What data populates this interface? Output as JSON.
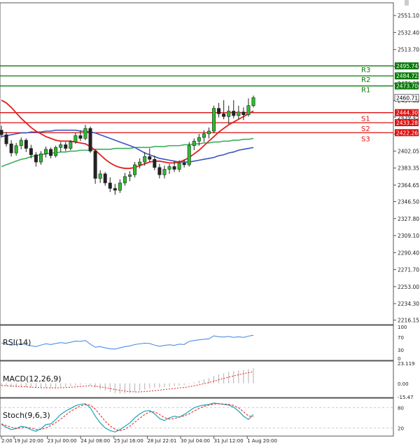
{
  "chart_data": {
    "type": "candlestick",
    "main": {
      "price_scale": [
        "2551.10",
        "2532.40",
        "2513.70",
        "2495.00",
        "2476.30",
        "2457.60",
        "2439.45",
        "2420.75",
        "2402.05",
        "2383.35",
        "2364.65",
        "2346.50",
        "2327.80",
        "2309.10",
        "2290.40",
        "2271.70",
        "2253.00",
        "2234.30",
        "2216.15"
      ],
      "ylim": [
        2212,
        2562
      ],
      "levels": [
        {
          "label": "R3",
          "value": 2495.74,
          "tag": "2495.74",
          "color": "#0a7a0a"
        },
        {
          "label": "R2",
          "value": 2484.72,
          "tag": "2484.72",
          "color": "#0a7a0a"
        },
        {
          "label": "R1",
          "value": 2473.7,
          "tag": "2473.70",
          "color": "#0a7a0a"
        },
        {
          "label": "S1",
          "value": 2444.3,
          "tag": "2444.30",
          "color": "#dd1111"
        },
        {
          "label": "S2",
          "value": 2433.28,
          "tag": "2433.28",
          "color": "#dd1111"
        },
        {
          "label": "S3",
          "value": 2422.26,
          "tag": "2422.26",
          "color": "#dd1111"
        }
      ],
      "current_price": {
        "value": 2460.71,
        "tag": "2460.71"
      },
      "candles": [
        {
          "o": 2425,
          "h": 2430,
          "l": 2417,
          "c": 2420
        },
        {
          "o": 2420,
          "h": 2423,
          "l": 2407,
          "c": 2410
        },
        {
          "o": 2410,
          "h": 2414,
          "l": 2396,
          "c": 2400
        },
        {
          "o": 2400,
          "h": 2411,
          "l": 2397,
          "c": 2408
        },
        {
          "o": 2408,
          "h": 2417,
          "l": 2404,
          "c": 2414
        },
        {
          "o": 2414,
          "h": 2416,
          "l": 2401,
          "c": 2405
        },
        {
          "o": 2405,
          "h": 2409,
          "l": 2394,
          "c": 2398
        },
        {
          "o": 2398,
          "h": 2401,
          "l": 2385,
          "c": 2390
        },
        {
          "o": 2390,
          "h": 2402,
          "l": 2387,
          "c": 2399
        },
        {
          "o": 2399,
          "h": 2407,
          "l": 2395,
          "c": 2404
        },
        {
          "o": 2404,
          "h": 2406,
          "l": 2394,
          "c": 2397
        },
        {
          "o": 2397,
          "h": 2408,
          "l": 2395,
          "c": 2406
        },
        {
          "o": 2406,
          "h": 2412,
          "l": 2401,
          "c": 2409
        },
        {
          "o": 2409,
          "h": 2412,
          "l": 2402,
          "c": 2405
        },
        {
          "o": 2405,
          "h": 2414,
          "l": 2403,
          "c": 2412
        },
        {
          "o": 2412,
          "h": 2422,
          "l": 2410,
          "c": 2419
        },
        {
          "o": 2419,
          "h": 2425,
          "l": 2413,
          "c": 2416
        },
        {
          "o": 2416,
          "h": 2431,
          "l": 2414,
          "c": 2427
        },
        {
          "o": 2427,
          "h": 2429,
          "l": 2400,
          "c": 2402
        },
        {
          "o": 2402,
          "h": 2404,
          "l": 2366,
          "c": 2372
        },
        {
          "o": 2372,
          "h": 2381,
          "l": 2367,
          "c": 2377
        },
        {
          "o": 2377,
          "h": 2379,
          "l": 2364,
          "c": 2367
        },
        {
          "o": 2367,
          "h": 2373,
          "l": 2357,
          "c": 2361
        },
        {
          "o": 2361,
          "h": 2366,
          "l": 2354,
          "c": 2359
        },
        {
          "o": 2359,
          "h": 2371,
          "l": 2356,
          "c": 2367
        },
        {
          "o": 2367,
          "h": 2378,
          "l": 2364,
          "c": 2374
        },
        {
          "o": 2374,
          "h": 2380,
          "l": 2369,
          "c": 2376
        },
        {
          "o": 2376,
          "h": 2390,
          "l": 2373,
          "c": 2387
        },
        {
          "o": 2387,
          "h": 2394,
          "l": 2383,
          "c": 2390
        },
        {
          "o": 2390,
          "h": 2401,
          "l": 2386,
          "c": 2396
        },
        {
          "o": 2396,
          "h": 2405,
          "l": 2390,
          "c": 2393
        },
        {
          "o": 2393,
          "h": 2397,
          "l": 2381,
          "c": 2384
        },
        {
          "o": 2384,
          "h": 2388,
          "l": 2372,
          "c": 2376
        },
        {
          "o": 2376,
          "h": 2386,
          "l": 2372,
          "c": 2382
        },
        {
          "o": 2382,
          "h": 2388,
          "l": 2377,
          "c": 2385
        },
        {
          "o": 2385,
          "h": 2391,
          "l": 2379,
          "c": 2382
        },
        {
          "o": 2382,
          "h": 2392,
          "l": 2379,
          "c": 2389
        },
        {
          "o": 2389,
          "h": 2393,
          "l": 2384,
          "c": 2387
        },
        {
          "o": 2387,
          "h": 2412,
          "l": 2385,
          "c": 2408
        },
        {
          "o": 2408,
          "h": 2416,
          "l": 2403,
          "c": 2413
        },
        {
          "o": 2413,
          "h": 2421,
          "l": 2408,
          "c": 2417
        },
        {
          "o": 2417,
          "h": 2425,
          "l": 2412,
          "c": 2421
        },
        {
          "o": 2421,
          "h": 2428,
          "l": 2416,
          "c": 2424
        },
        {
          "o": 2424,
          "h": 2452,
          "l": 2422,
          "c": 2449
        },
        {
          "o": 2449,
          "h": 2455,
          "l": 2439,
          "c": 2443
        },
        {
          "o": 2443,
          "h": 2458,
          "l": 2437,
          "c": 2440
        },
        {
          "o": 2440,
          "h": 2452,
          "l": 2432,
          "c": 2446
        },
        {
          "o": 2446,
          "h": 2458,
          "l": 2438,
          "c": 2441
        },
        {
          "o": 2441,
          "h": 2452,
          "l": 2437,
          "c": 2445
        },
        {
          "o": 2445,
          "h": 2450,
          "l": 2436,
          "c": 2442
        },
        {
          "o": 2442,
          "h": 2460,
          "l": 2440,
          "c": 2452
        },
        {
          "o": 2452,
          "h": 2463,
          "l": 2450,
          "c": 2460.71
        }
      ],
      "ma_red": [
        2458,
        2455,
        2450,
        2444,
        2438,
        2433,
        2428,
        2424,
        2421,
        2418,
        2416,
        2414,
        2413,
        2413,
        2413,
        2412,
        2411,
        2410,
        2407,
        2403,
        2398,
        2393,
        2389,
        2386,
        2384,
        2383,
        2383,
        2384,
        2386,
        2388,
        2390,
        2391,
        2391,
        2390,
        2389,
        2389,
        2390,
        2392,
        2395,
        2399,
        2403,
        2408,
        2413,
        2418,
        2423,
        2427,
        2431,
        2434,
        2437,
        2440,
        2443,
        2446
      ],
      "ma_blue": [
        2418,
        2419,
        2420,
        2421,
        2422,
        2422,
        2423,
        2423,
        2423,
        2424,
        2424,
        2425,
        2425,
        2425,
        2425,
        2425,
        2424,
        2424,
        2423,
        2422,
        2420,
        2418,
        2416,
        2414,
        2412,
        2410,
        2408,
        2406,
        2403,
        2400,
        2398,
        2396,
        2394,
        2393,
        2392,
        2391,
        2390,
        2390,
        2390,
        2391,
        2392,
        2393,
        2394,
        2395,
        2397,
        2398,
        2400,
        2401,
        2403,
        2404,
        2405,
        2406
      ],
      "ma_green": [
        2385,
        2387,
        2389,
        2391,
        2393,
        2394,
        2396,
        2397,
        2398,
        2399,
        2400,
        2400,
        2401,
        2401,
        2402,
        2402,
        2403,
        2403,
        2403,
        2404,
        2404,
        2404,
        2404,
        2405,
        2405,
        2405,
        2405,
        2406,
        2406,
        2406,
        2406,
        2407,
        2407,
        2407,
        2408,
        2408,
        2408,
        2409,
        2409,
        2410,
        2410,
        2411,
        2411,
        2412,
        2412,
        2413,
        2413,
        2414,
        2414,
        2415,
        2415,
        2416
      ]
    },
    "time_labels": [
      "2:00",
      "19 Jul 20:00",
      "23 Jul 00:00",
      "24 Jul 08:00",
      "25 Jul 16:00",
      "28 Jul 22:01",
      "30 Jul 04:00",
      "31 Jul 12:00",
      "1 Aug 20:00"
    ],
    "rsi": {
      "label": "RSI(14)",
      "scale": [
        "100",
        "70",
        "30",
        "0"
      ],
      "ylim": [
        0,
        100
      ],
      "values": [
        52,
        48,
        45,
        47,
        50,
        46,
        43,
        40,
        45,
        49,
        47,
        50,
        53,
        51,
        54,
        58,
        57,
        60,
        48,
        38,
        40,
        36,
        33,
        32,
        36,
        40,
        42,
        47,
        49,
        51,
        50,
        45,
        41,
        44,
        46,
        44,
        48,
        47,
        57,
        60,
        62,
        64,
        65,
        75,
        72,
        71,
        73,
        70,
        72,
        70,
        74,
        77
      ]
    },
    "macd": {
      "label": "MACD(12,26,9)",
      "scale": [
        "23.119",
        "0.00",
        "-15.47"
      ],
      "ylim": [
        -15.47,
        23.119
      ],
      "histogram": [
        -3,
        -3.5,
        -4.2,
        -4.5,
        -4.6,
        -4.8,
        -5.2,
        -5.6,
        -5.6,
        -5.3,
        -5.2,
        -4.8,
        -4.2,
        -3.7,
        -3.1,
        -2.2,
        -1.6,
        -0.8,
        -2.2,
        -4.8,
        -6.8,
        -8.4,
        -10.0,
        -11.3,
        -11.8,
        -11.6,
        -11.0,
        -9.9,
        -8.6,
        -7.1,
        -5.8,
        -5.1,
        -5.0,
        -4.4,
        -3.7,
        -3.3,
        -2.6,
        -2.1,
        -0.6,
        1.2,
        3.0,
        4.6,
        6.0,
        8.6,
        10.3,
        11.6,
        13.1,
        14.0,
        14.9,
        15.4,
        16.3,
        17.4
      ],
      "signal": [
        -2.5,
        -2.8,
        -3.1,
        -3.4,
        -3.7,
        -4.0,
        -4.3,
        -4.6,
        -4.9,
        -5.1,
        -5.2,
        -5.2,
        -5.0,
        -4.8,
        -4.5,
        -4.1,
        -3.6,
        -3.1,
        -2.9,
        -3.3,
        -4.0,
        -4.9,
        -6.0,
        -7.1,
        -8.1,
        -8.9,
        -9.5,
        -9.8,
        -9.8,
        -9.5,
        -9.0,
        -8.4,
        -7.8,
        -7.1,
        -6.5,
        -5.9,
        -5.3,
        -4.7,
        -3.9,
        -2.9,
        -1.7,
        -0.4,
        0.9,
        2.5,
        4.1,
        5.6,
        7.1,
        8.5,
        9.8,
        11.0,
        12.2,
        13.4
      ]
    },
    "stoch": {
      "label": "Stoch(9,6,3)",
      "scale": [
        "80",
        "20"
      ],
      "ylim": [
        0,
        100
      ],
      "k": [
        30,
        22,
        15,
        18,
        25,
        22,
        15,
        10,
        18,
        30,
        32,
        45,
        60,
        70,
        78,
        86,
        90,
        92,
        80,
        55,
        35,
        20,
        12,
        8,
        15,
        25,
        35,
        50,
        62,
        70,
        72,
        62,
        48,
        42,
        50,
        55,
        52,
        60,
        70,
        80,
        85,
        88,
        90,
        94,
        92,
        90,
        88,
        82,
        70,
        55,
        45,
        60
      ],
      "d": [
        32,
        27,
        22,
        19,
        20,
        22,
        20,
        16,
        15,
        20,
        27,
        36,
        46,
        58,
        69,
        78,
        85,
        89,
        88,
        76,
        58,
        40,
        26,
        16,
        12,
        16,
        25,
        37,
        49,
        60,
        68,
        68,
        60,
        51,
        46,
        48,
        52,
        56,
        62,
        70,
        78,
        84,
        88,
        91,
        92,
        91,
        90,
        87,
        80,
        68,
        56,
        53
      ]
    }
  }
}
